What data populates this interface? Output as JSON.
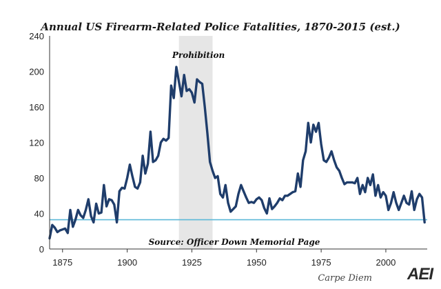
{
  "chart_data": {
    "type": "line",
    "title": "Annual US Firearm-Related Police Fatalities, 1870-2015 (est.)",
    "xlabel": "",
    "ylabel": "",
    "xlim": [
      1870,
      2016
    ],
    "ylim": [
      0,
      240
    ],
    "x_ticks": [
      1875,
      1900,
      1925,
      1950,
      1975,
      2000
    ],
    "y_ticks": [
      0,
      40,
      80,
      120,
      160,
      200,
      240
    ],
    "shaded_region": {
      "label": "Prohibition",
      "x_start": 1920,
      "x_end": 1933
    },
    "reference_line": {
      "y": 33
    },
    "annotations": [
      "Prohibition",
      "Source: Officer Down Memorial Page"
    ],
    "series": [
      {
        "name": "Firearm-related police fatalities",
        "x": [
          1870,
          1871,
          1872,
          1873,
          1874,
          1875,
          1876,
          1877,
          1878,
          1879,
          1880,
          1881,
          1882,
          1883,
          1884,
          1885,
          1886,
          1887,
          1888,
          1889,
          1890,
          1891,
          1892,
          1893,
          1894,
          1895,
          1896,
          1897,
          1898,
          1899,
          1900,
          1901,
          1902,
          1903,
          1904,
          1905,
          1906,
          1907,
          1908,
          1909,
          1910,
          1911,
          1912,
          1913,
          1914,
          1915,
          1916,
          1917,
          1918,
          1919,
          1920,
          1921,
          1922,
          1923,
          1924,
          1925,
          1926,
          1927,
          1928,
          1929,
          1930,
          1931,
          1932,
          1933,
          1934,
          1935,
          1936,
          1937,
          1938,
          1939,
          1940,
          1941,
          1942,
          1943,
          1944,
          1945,
          1946,
          1947,
          1948,
          1949,
          1950,
          1951,
          1952,
          1953,
          1954,
          1955,
          1956,
          1957,
          1958,
          1959,
          1960,
          1961,
          1962,
          1963,
          1964,
          1965,
          1966,
          1967,
          1968,
          1969,
          1970,
          1971,
          1972,
          1973,
          1974,
          1975,
          1976,
          1977,
          1978,
          1979,
          1980,
          1981,
          1982,
          1983,
          1984,
          1985,
          1986,
          1987,
          1988,
          1989,
          1990,
          1991,
          1992,
          1993,
          1994,
          1995,
          1996,
          1997,
          1998,
          1999,
          2000,
          2001,
          2002,
          2003,
          2004,
          2005,
          2006,
          2007,
          2008,
          2009,
          2010,
          2011,
          2012,
          2013,
          2014,
          2015
        ],
        "values": [
          12,
          27,
          24,
          19,
          21,
          22,
          23,
          18,
          44,
          25,
          33,
          44,
          38,
          35,
          44,
          56,
          37,
          30,
          51,
          40,
          41,
          72,
          48,
          56,
          55,
          50,
          30,
          65,
          69,
          68,
          80,
          95,
          82,
          70,
          68,
          75,
          105,
          85,
          96,
          132,
          98,
          100,
          105,
          120,
          124,
          122,
          125,
          184,
          170,
          205,
          188,
          172,
          196,
          178,
          180,
          176,
          165,
          191,
          188,
          186,
          160,
          130,
          98,
          88,
          80,
          82,
          62,
          58,
          72,
          52,
          42,
          45,
          48,
          62,
          72,
          65,
          58,
          52,
          53,
          52,
          56,
          58,
          55,
          46,
          40,
          57,
          45,
          48,
          52,
          57,
          55,
          60,
          60,
          62,
          64,
          65,
          85,
          70,
          100,
          110,
          142,
          120,
          140,
          132,
          142,
          118,
          100,
          98,
          103,
          110,
          100,
          92,
          88,
          80,
          73,
          75,
          75,
          75,
          74,
          80,
          62,
          72,
          64,
          80,
          72,
          84,
          60,
          72,
          58,
          64,
          60,
          44,
          52,
          64,
          52,
          44,
          52,
          60,
          52,
          50,
          65,
          44,
          56,
          62,
          58,
          30
        ]
      }
    ]
  },
  "footer": {
    "credit": "Carpe Diem",
    "logo": "AEI"
  }
}
